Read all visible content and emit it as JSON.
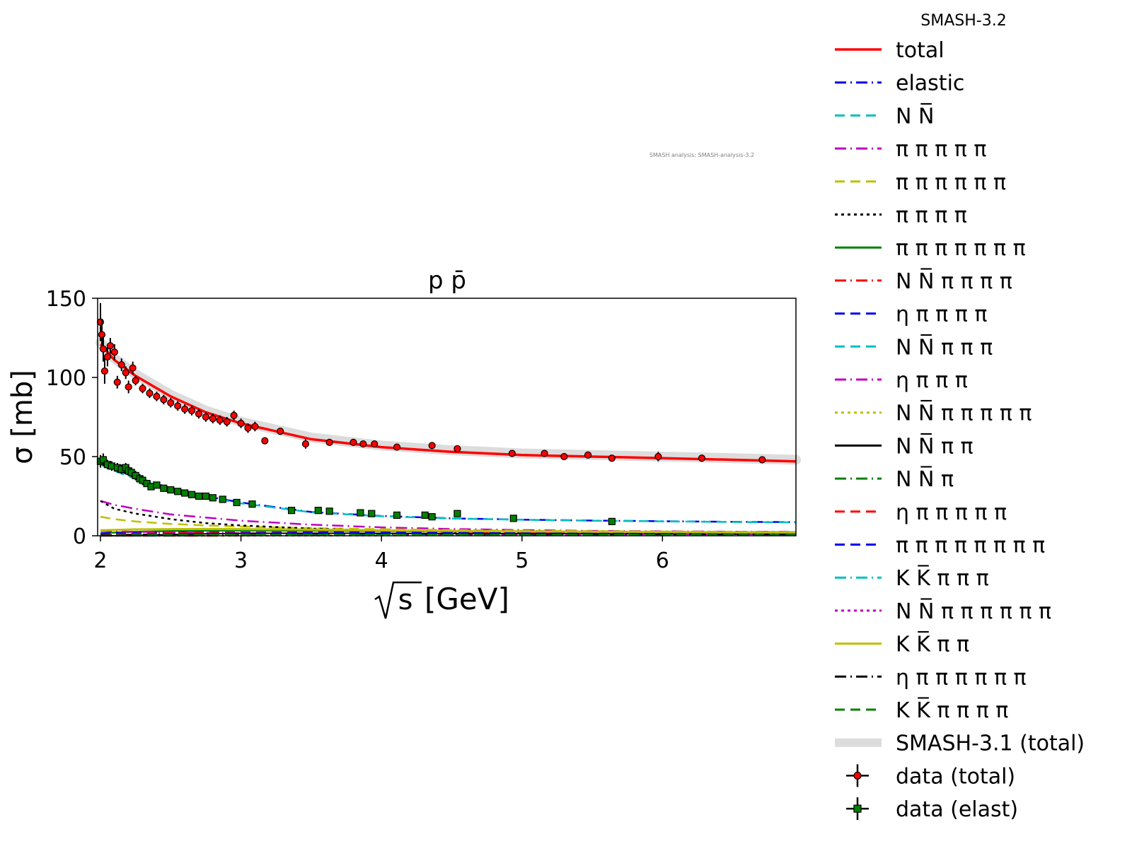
{
  "chart_data": {
    "type": "line",
    "title": "p p̄",
    "xlabel": "[GeV]",
    "xlabel_sqrt_symbol": "s",
    "ylabel": "σ [mb]",
    "xlim": [
      1.98,
      6.95
    ],
    "ylim": [
      0,
      150
    ],
    "xticks": [
      2,
      3,
      4,
      5,
      6
    ],
    "yticks": [
      0,
      50,
      100,
      150
    ],
    "watermark": "SMASH analysis: SMASH-analysis-3.2",
    "legend_title": "SMASH-3.2",
    "legend_position": "outside-right",
    "grid": false,
    "curve_x": [
      2.0,
      2.1,
      2.25,
      2.5,
      2.75,
      3.0,
      3.5,
      4.0,
      4.5,
      5.0,
      5.5,
      6.0,
      6.5,
      6.95
    ],
    "series": [
      {
        "name": "total",
        "color": "#ff0000",
        "style": "solid",
        "width": 3.5,
        "values": [
          121,
          111,
          101,
          88,
          78,
          71,
          61,
          56,
          53,
          51,
          50,
          49,
          48,
          47
        ]
      },
      {
        "name": "elastic",
        "color": "#0000ee",
        "style": "dashdot",
        "width": 2.5,
        "values": [
          46,
          42,
          37,
          30,
          25,
          21,
          15,
          12.5,
          11,
          10.2,
          9.6,
          9.2,
          8.8,
          8.6
        ]
      },
      {
        "name": "N N̅",
        "color": "#00bfbf",
        "style": "dashed",
        "width": 2.5,
        "values": [
          45,
          41,
          36,
          29.5,
          24.5,
          20.5,
          14.8,
          12.3,
          10.9,
          10.1,
          9.5,
          9.1,
          8.7,
          8.5
        ]
      },
      {
        "name": "π π π π π",
        "color": "#c000c0",
        "style": "dashdot",
        "width": 2.5,
        "values": [
          22,
          19.5,
          17,
          13.5,
          11.5,
          9.5,
          7,
          5.3,
          4.3,
          3.6,
          3.1,
          2.8,
          2.6,
          2.4
        ]
      },
      {
        "name": "π π π π π π",
        "color": "#bfbf00",
        "style": "dashed",
        "width": 2.5,
        "values": [
          12,
          10.5,
          9,
          7.5,
          6.5,
          5.8,
          4.8,
          4.1,
          3.6,
          3.2,
          2.9,
          2.7,
          2.5,
          2.3
        ]
      },
      {
        "name": "π π π π",
        "color": "#000000",
        "style": "dotted",
        "width": 2.5,
        "values": [
          22,
          17,
          14,
          10.5,
          8,
          6.5,
          4.5,
          3.2,
          2.5,
          2.0,
          1.7,
          1.5,
          1.3,
          1.2
        ]
      },
      {
        "name": "π π π π π π π",
        "color": "#008000",
        "style": "solid",
        "width": 2.5,
        "values": [
          1.5,
          2,
          2.5,
          3,
          3.2,
          3.3,
          3.2,
          3,
          2.8,
          2.6,
          2.4,
          2.3,
          2.2,
          2.1
        ]
      },
      {
        "name": "N N̅ π π π π",
        "color": "#ff0000",
        "style": "dashdot",
        "width": 2.5,
        "values": [
          0,
          0,
          0,
          0,
          0,
          0.2,
          0.6,
          1.0,
          1.4,
          1.8,
          2.0,
          2.2,
          2.3,
          2.4
        ]
      },
      {
        "name": "η π π π π",
        "color": "#0000ee",
        "style": "dashed",
        "width": 2.5,
        "values": [
          1.5,
          1.8,
          2,
          2.2,
          2.2,
          2.1,
          1.9,
          1.7,
          1.5,
          1.4,
          1.3,
          1.2,
          1.1,
          1.0
        ]
      },
      {
        "name": "N N̅ π π π",
        "color": "#00bfbf",
        "style": "dashed",
        "width": 2.5,
        "values": [
          0,
          0,
          0,
          0,
          0.3,
          0.8,
          1.5,
          2.0,
          2.3,
          2.4,
          2.4,
          2.4,
          2.3,
          2.3
        ]
      },
      {
        "name": "η π π π",
        "color": "#c000c0",
        "style": "dashdot",
        "width": 2.5,
        "values": [
          3,
          2.8,
          2.5,
          2.2,
          1.9,
          1.6,
          1.3,
          1.1,
          0.9,
          0.8,
          0.7,
          0.65,
          0.6,
          0.55
        ]
      },
      {
        "name": "N N̅ π π π π π",
        "color": "#bfbf00",
        "style": "dotted",
        "width": 2.5,
        "values": [
          0,
          0,
          0,
          0,
          0,
          0,
          0.2,
          0.5,
          0.8,
          1.1,
          1.4,
          1.6,
          1.8,
          1.9
        ]
      },
      {
        "name": "N N̅ π π",
        "color": "#000000",
        "style": "solid",
        "width": 2,
        "values": [
          0,
          0,
          0.2,
          0.8,
          1.2,
          1.5,
          1.6,
          1.5,
          1.4,
          1.3,
          1.2,
          1.1,
          1.0,
          1.0
        ]
      },
      {
        "name": "N N̅ π",
        "color": "#008000",
        "style": "dashdot",
        "width": 2,
        "values": [
          0,
          0.3,
          0.8,
          1.2,
          1.3,
          1.3,
          1.2,
          1.1,
          1.0,
          0.9,
          0.8,
          0.8,
          0.7,
          0.7
        ]
      },
      {
        "name": "η π π π π π",
        "color": "#ff0000",
        "style": "dashed",
        "width": 2.5,
        "values": [
          0.5,
          0.8,
          1.2,
          1.6,
          1.9,
          2.1,
          2.3,
          2.4,
          2.4,
          2.3,
          2.2,
          2.1,
          2.0,
          2.0
        ]
      },
      {
        "name": "π π π π π π π π",
        "color": "#0000ee",
        "style": "dashed",
        "width": 2.5,
        "values": [
          0.2,
          0.4,
          0.6,
          1.0,
          1.3,
          1.6,
          1.9,
          2.0,
          2.0,
          2.0,
          1.9,
          1.9,
          1.8,
          1.8
        ]
      },
      {
        "name": "K K̅ π π π",
        "color": "#00bfbf",
        "style": "dashdot",
        "width": 2,
        "values": [
          0.3,
          0.5,
          0.7,
          0.9,
          1.0,
          1.0,
          1.0,
          0.9,
          0.9,
          0.8,
          0.8,
          0.7,
          0.7,
          0.7
        ]
      },
      {
        "name": "N N̅ π π π π π π",
        "color": "#c000c0",
        "style": "dotted",
        "width": 2,
        "values": [
          0,
          0,
          0,
          0,
          0,
          0,
          0,
          0.1,
          0.3,
          0.5,
          0.7,
          0.9,
          1.0,
          1.1
        ]
      },
      {
        "name": "K K̅ π π",
        "color": "#bfbf00",
        "style": "solid",
        "width": 3,
        "values": [
          3.5,
          3.7,
          4,
          4.2,
          4.3,
          4.2,
          3.9,
          3.5,
          3.1,
          2.8,
          2.6,
          2.4,
          2.2,
          2.1
        ]
      },
      {
        "name": "η π π π π π π",
        "color": "#000000",
        "style": "dashdot",
        "width": 2,
        "values": [
          0.5,
          0.6,
          0.8,
          1.0,
          1.1,
          1.2,
          1.2,
          1.2,
          1.1,
          1.1,
          1.0,
          1.0,
          0.9,
          0.9
        ]
      },
      {
        "name": "K K̅ π π π π",
        "color": "#008000",
        "style": "dashed",
        "width": 2,
        "values": [
          0.2,
          0.3,
          0.5,
          0.7,
          0.8,
          0.9,
          0.9,
          0.9,
          0.9,
          0.8,
          0.8,
          0.8,
          0.7,
          0.7
        ]
      },
      {
        "name": "SMASH-3.1 (total)",
        "color": "#d3d3d3",
        "style": "band",
        "width": 14,
        "values": [
          122,
          112,
          102,
          89,
          79,
          72,
          62,
          57,
          54,
          52,
          51,
          50,
          49,
          48
        ]
      }
    ],
    "data_total": {
      "name": "data (total)",
      "color": "#ff0000",
      "x": [
        2.0,
        2.01,
        2.02,
        2.03,
        2.05,
        2.07,
        2.1,
        2.12,
        2.15,
        2.18,
        2.2,
        2.23,
        2.25,
        2.3,
        2.35,
        2.4,
        2.45,
        2.5,
        2.55,
        2.6,
        2.65,
        2.7,
        2.75,
        2.8,
        2.85,
        2.9,
        2.95,
        3.0,
        3.05,
        3.1,
        3.17,
        3.28,
        3.46,
        3.63,
        3.8,
        3.87,
        3.95,
        4.11,
        4.36,
        4.54,
        4.93,
        5.16,
        5.3,
        5.47,
        5.64,
        5.97,
        6.28,
        6.71
      ],
      "y": [
        135,
        127,
        118,
        104,
        113,
        120,
        116,
        97,
        108,
        103,
        94,
        106,
        98,
        93,
        90,
        88,
        86,
        84,
        82,
        80,
        79,
        77,
        75,
        74,
        73,
        72,
        76,
        71,
        68,
        69,
        60,
        66,
        58,
        59,
        59,
        58,
        58,
        56,
        57,
        55,
        52,
        52,
        50,
        51,
        49,
        50,
        49,
        48
      ],
      "err": [
        12,
        10,
        8,
        8,
        6,
        5,
        5,
        4,
        4,
        4,
        4,
        4,
        3,
        3,
        3,
        3,
        3,
        3,
        3,
        3,
        3,
        3,
        3,
        3,
        3,
        3,
        3,
        3,
        3,
        3,
        2,
        2,
        3,
        2,
        2,
        2,
        2,
        2,
        2,
        2,
        2,
        2,
        2,
        2,
        2,
        3,
        2,
        2
      ]
    },
    "data_elast": {
      "name": "data (elast)",
      "color": "#008000",
      "x": [
        2.0,
        2.02,
        2.05,
        2.08,
        2.12,
        2.15,
        2.18,
        2.2,
        2.22,
        2.25,
        2.28,
        2.3,
        2.33,
        2.36,
        2.4,
        2.45,
        2.5,
        2.55,
        2.6,
        2.65,
        2.7,
        2.75,
        2.8,
        2.87,
        2.97,
        3.08,
        3.36,
        3.55,
        3.63,
        3.85,
        3.93,
        4.11,
        4.31,
        4.36,
        4.54,
        4.94,
        5.64
      ],
      "y": [
        47,
        48,
        45,
        44,
        43,
        42,
        43,
        41,
        40,
        38,
        36,
        35,
        33,
        31,
        32,
        30,
        29,
        28,
        27,
        26,
        25,
        25,
        24,
        23,
        21,
        20,
        16,
        16,
        15.5,
        14.5,
        14,
        13,
        13,
        12,
        14,
        11,
        9
      ],
      "err": [
        4,
        4,
        3,
        3,
        3,
        3,
        3,
        3,
        3,
        3,
        3,
        3,
        2,
        2,
        2,
        2,
        2,
        2,
        2,
        2,
        2,
        2,
        2,
        1.5,
        1.5,
        1.5,
        1.5,
        1.5,
        1.5,
        1.5,
        1.5,
        1.5,
        1.5,
        1.5,
        2,
        1.5,
        1.5
      ]
    }
  }
}
